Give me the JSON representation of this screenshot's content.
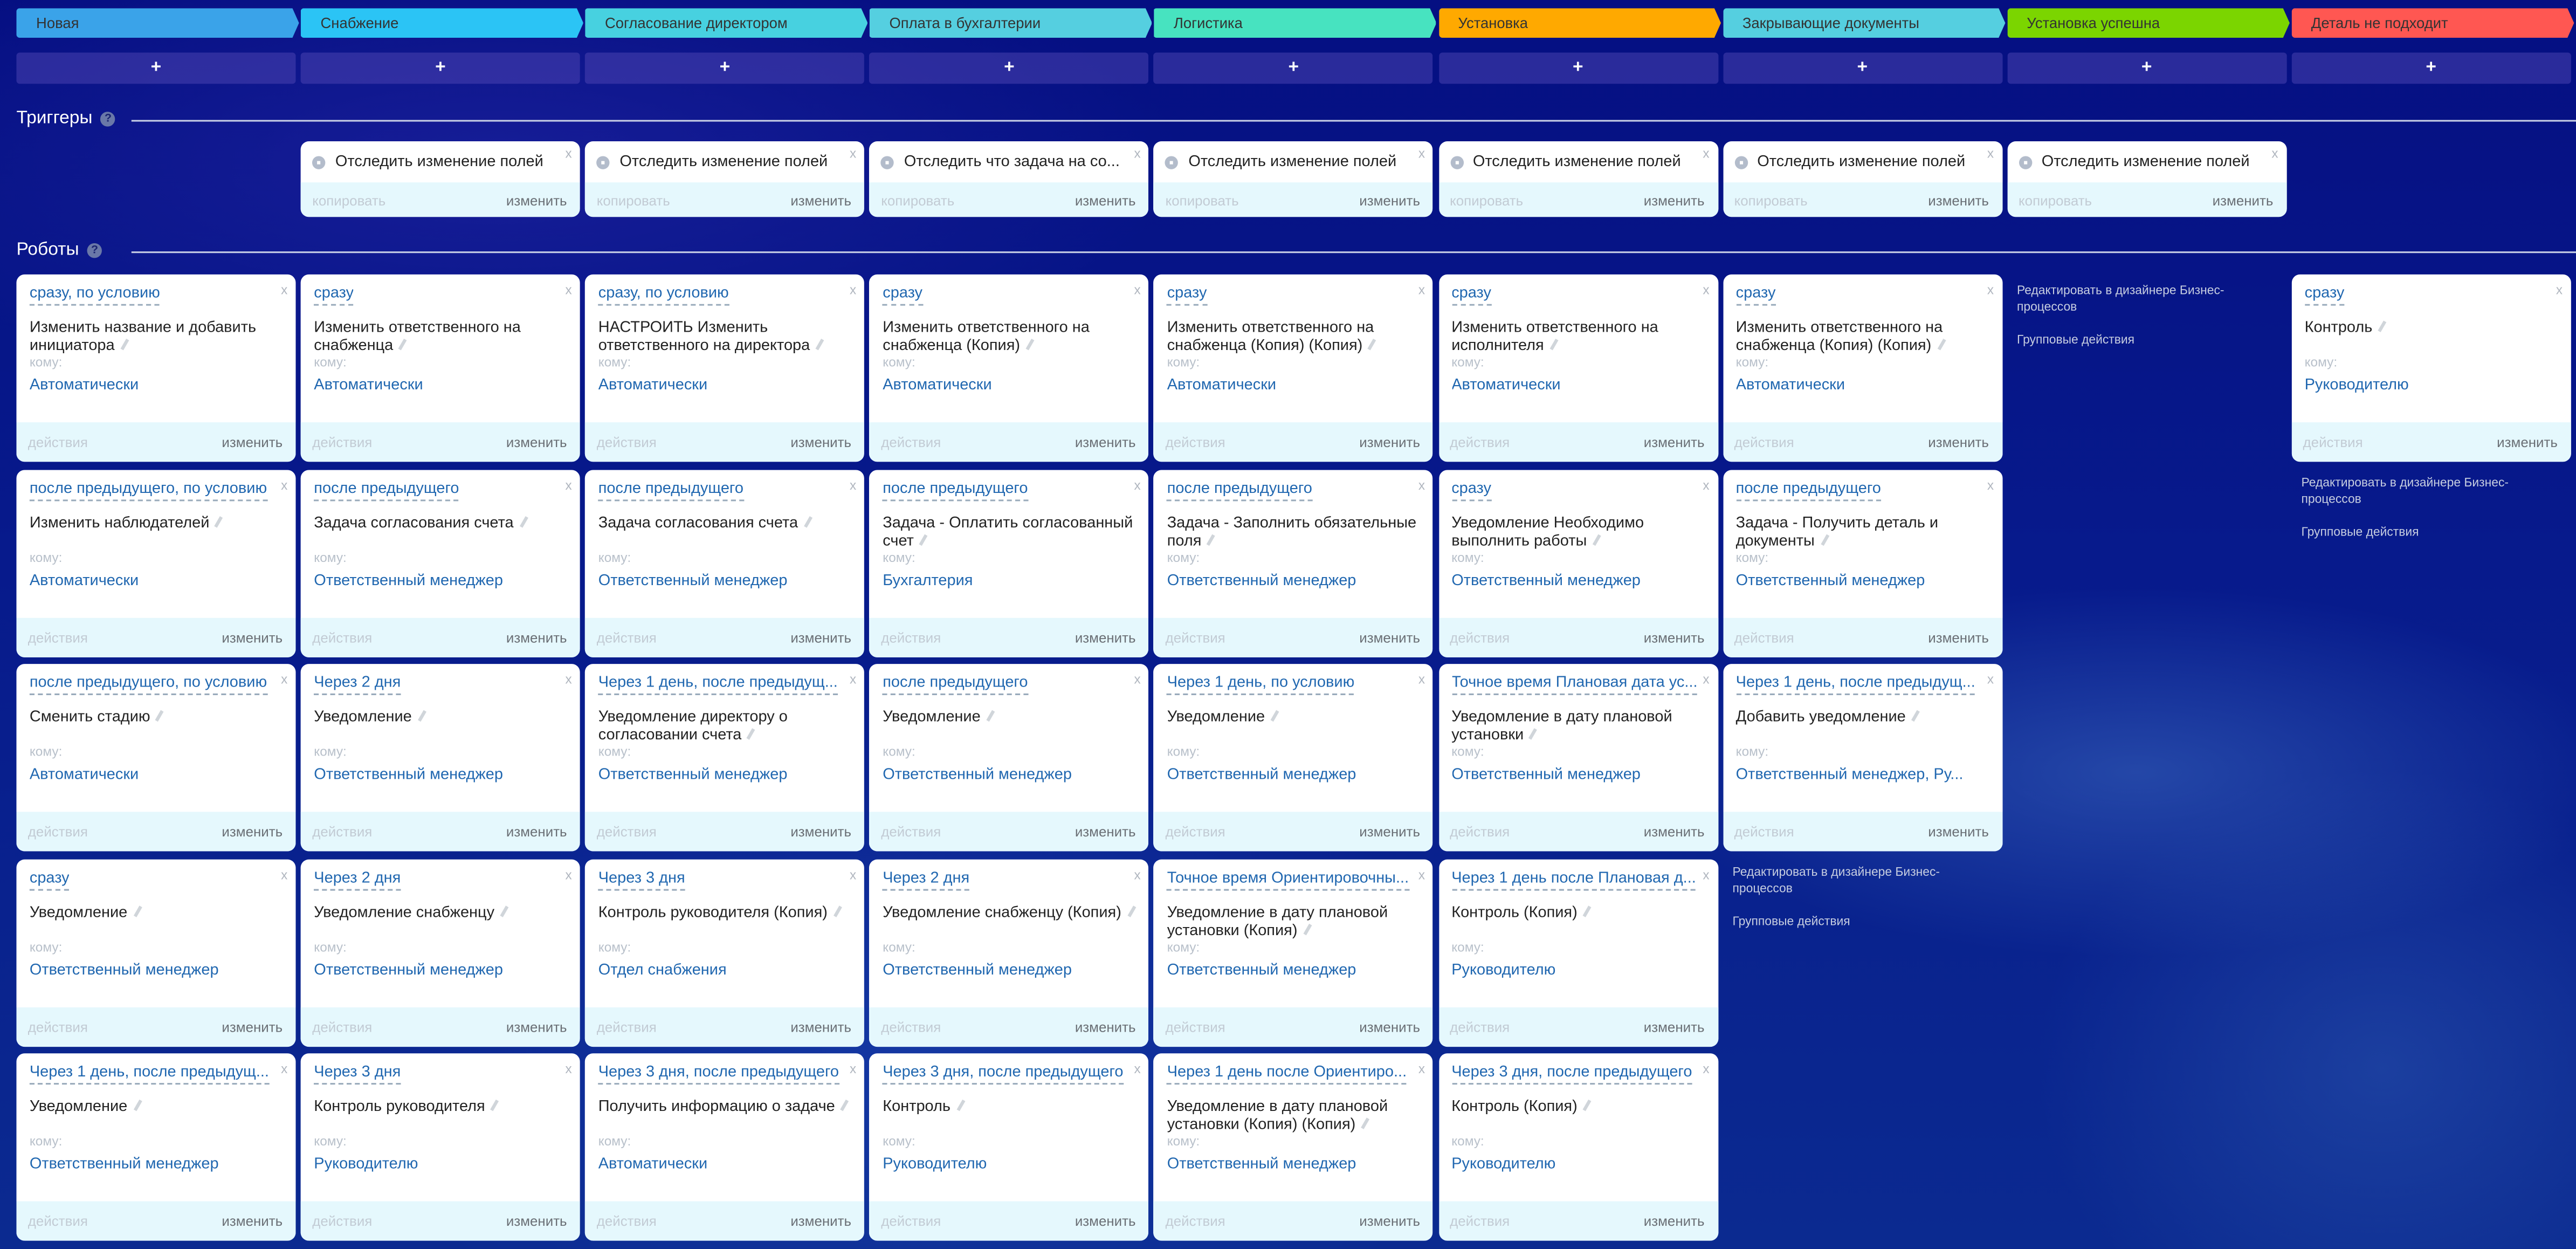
{
  "stages": [
    {
      "label": "Новая",
      "color": "#3aa3e9"
    },
    {
      "label": "Снабжение",
      "color": "#2bc4f5"
    },
    {
      "label": "Согласование директором",
      "color": "#47d1e0"
    },
    {
      "label": "Оплата в бухгалтерии",
      "color": "#55cfe0"
    },
    {
      "label": "Логистика",
      "color": "#47e3c0"
    },
    {
      "label": "Установка",
      "color": "#ffa900"
    },
    {
      "label": "Закрывающие документы",
      "color": "#55cfe0"
    },
    {
      "label": "Установка успешна",
      "color": "#7bd500"
    },
    {
      "label": "Деталь не подходит",
      "color": "#ff5752"
    }
  ],
  "add_label": "+",
  "triggers_title": "Триггеры",
  "robots_title": "Роботы",
  "help_icon": "?",
  "close_label": "x",
  "triggers": [
    {
      "col": 1,
      "title": "Отследить изменение полей"
    },
    {
      "col": 2,
      "title": "Отследить изменение полей"
    },
    {
      "col": 3,
      "title": "Отследить что задача на со..."
    },
    {
      "col": 4,
      "title": "Отследить изменение полей"
    },
    {
      "col": 5,
      "title": "Отследить изменение полей"
    },
    {
      "col": 6,
      "title": "Отследить изменение полей"
    },
    {
      "col": 7,
      "title": "Отследить изменение полей"
    }
  ],
  "trigger_footer": {
    "copy": "копировать",
    "edit": "изменить"
  },
  "robot_footer": {
    "actions": "действия",
    "edit": "изменить"
  },
  "to_label": "кому:",
  "robot_columns": [
    [
      {
        "when": "сразу, по условию",
        "title": "Изменить название и добавить инициатора",
        "to": "Автоматически"
      },
      {
        "when": "после предыдущего, по условию",
        "title": "Изменить наблюдателей",
        "to": "Автоматически"
      },
      {
        "when": "после предыдущего, по условию",
        "title": "Сменить стадию",
        "to": "Автоматически"
      },
      {
        "when": "сразу",
        "title": "Уведомление",
        "to": "Ответственный менеджер"
      },
      {
        "when": "Через 1 день, после предыдущ...",
        "title": "Уведомление",
        "to": "Ответственный менеджер"
      }
    ],
    [
      {
        "when": "сразу",
        "title": "Изменить ответственного на снабженца",
        "to": "Автоматически"
      },
      {
        "when": "после предыдущего",
        "title": "Задача согласования счета",
        "to": "Ответственный менеджер"
      },
      {
        "when": "Через 2 дня",
        "title": "Уведомление",
        "to": "Ответственный менеджер"
      },
      {
        "when": "Через 2 дня",
        "title": "Уведомление снабженцу",
        "to": "Ответственный менеджер"
      },
      {
        "when": "Через 3 дня",
        "title": "Контроль руководителя",
        "to": "Руководителю"
      }
    ],
    [
      {
        "when": "сразу, по условию",
        "title": "НАСТРОИТЬ Изменить ответственного на директора",
        "to": "Автоматически"
      },
      {
        "when": "после предыдущего",
        "title": "Задача согласования счета",
        "to": "Ответственный менеджер"
      },
      {
        "when": "Через 1 день, после предыдущ...",
        "title": "Уведомление директору о согласовании счета",
        "to": "Ответственный менеджер"
      },
      {
        "when": "Через 3 дня",
        "title": "Контроль руководителя (Копия)",
        "to": "Отдел снабжения"
      },
      {
        "when": "Через 3 дня, после предыдущего",
        "title": "Получить информацию о задаче",
        "to": "Автоматически"
      }
    ],
    [
      {
        "when": "сразу",
        "title": "Изменить ответственного на снабженца (Копия)",
        "to": "Автоматически"
      },
      {
        "when": "после предыдущего",
        "title": "Задача - Оплатить согласованный счет",
        "to": "Бухгалтерия"
      },
      {
        "when": "после предыдущего",
        "title": "Уведомление",
        "to": "Ответственный менеджер"
      },
      {
        "when": "Через 2 дня",
        "title": "Уведомление снабженцу (Копия)",
        "to": "Ответственный менеджер"
      },
      {
        "when": "Через 3 дня, после предыдущего",
        "title": "Контроль",
        "to": "Руководителю"
      }
    ],
    [
      {
        "when": "сразу",
        "title": "Изменить ответственного на снабженца (Копия) (Копия)",
        "to": "Автоматически"
      },
      {
        "when": "после предыдущего",
        "title": "Задача - Заполнить обязательные поля",
        "to": "Ответственный менеджер"
      },
      {
        "when": "Через 1 день, по условию",
        "title": "Уведомление",
        "to": "Ответственный менеджер"
      },
      {
        "when": "Точное время Ориентировочны...",
        "title": "Уведомление в дату плановой установки (Копия)",
        "to": "Ответственный менеджер"
      },
      {
        "when": "Через 1 день после Ориентиро...",
        "title": "Уведомление в дату плановой установки (Копия) (Копия)",
        "to": "Ответственный менеджер"
      }
    ],
    [
      {
        "when": "сразу",
        "title": "Изменить ответственного на исполнителя",
        "to": "Автоматически"
      },
      {
        "when": "сразу",
        "title": "Уведомление Необходимо выполнить работы",
        "to": "Ответственный менеджер"
      },
      {
        "when": "Точное время Плановая дата ус...",
        "title": "Уведомление в дату плановой установки",
        "to": "Ответственный менеджер"
      },
      {
        "when": "Через 1 день после Плановая д...",
        "title": "Контроль (Копия)",
        "to": "Руководителю"
      },
      {
        "when": "Через 3 дня, после предыдущего",
        "title": "Контроль (Копия)",
        "to": "Руководителю"
      }
    ],
    [
      {
        "when": "сразу",
        "title": "Изменить ответственного на снабженца (Копия) (Копия)",
        "to": "Автоматически"
      },
      {
        "when": "после предыдущего",
        "title": "Задача - Получить деталь и документы",
        "to": "Ответственный менеджер"
      },
      {
        "when": "Через 1 день, после предыдущ...",
        "title": "Добавить уведомление",
        "to": "Ответственный менеджер, Ру..."
      }
    ],
    [],
    [
      {
        "when": "сразу",
        "title": "Контроль",
        "to": "Руководителю"
      }
    ]
  ],
  "side_links": {
    "designer": "Редактировать в дизайнере Бизнес-процессов",
    "group": "Групповые действия"
  }
}
